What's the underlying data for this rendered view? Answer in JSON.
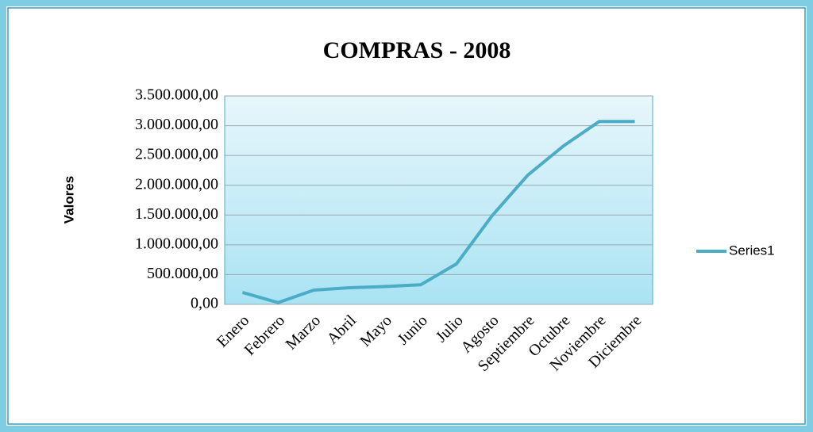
{
  "chart_data": {
    "type": "line",
    "title": "COMPRAS - 2008",
    "y_label": "Valores",
    "categories": [
      "Enero",
      "Febrero",
      "Marzo",
      "Abril",
      "Mayo",
      "Junio",
      "Julio",
      "Agosto",
      "Septiembre",
      "Octubre",
      "Noviembre",
      "Diciembre"
    ],
    "series": [
      {
        "name": "Series1",
        "color": "#4bacc6",
        "values": [
          200000,
          30000,
          240000,
          280000,
          300000,
          330000,
          680000,
          1490000,
          2170000,
          2660000,
          3070000,
          3070000
        ]
      }
    ],
    "ylim": [
      0,
      3500000
    ],
    "yticks": [
      {
        "value": 0,
        "label": "0,00"
      },
      {
        "value": 500000,
        "label": "500.000,00"
      },
      {
        "value": 1000000,
        "label": "1.000.000,00"
      },
      {
        "value": 1500000,
        "label": "1.500.000,00"
      },
      {
        "value": 2000000,
        "label": "2.000.000,00"
      },
      {
        "value": 2500000,
        "label": "2.500.000,00"
      },
      {
        "value": 3000000,
        "label": "3.000.000,00"
      },
      {
        "value": 3500000,
        "label": "3.500.000,00"
      }
    ],
    "grid": true,
    "legend": "right"
  }
}
